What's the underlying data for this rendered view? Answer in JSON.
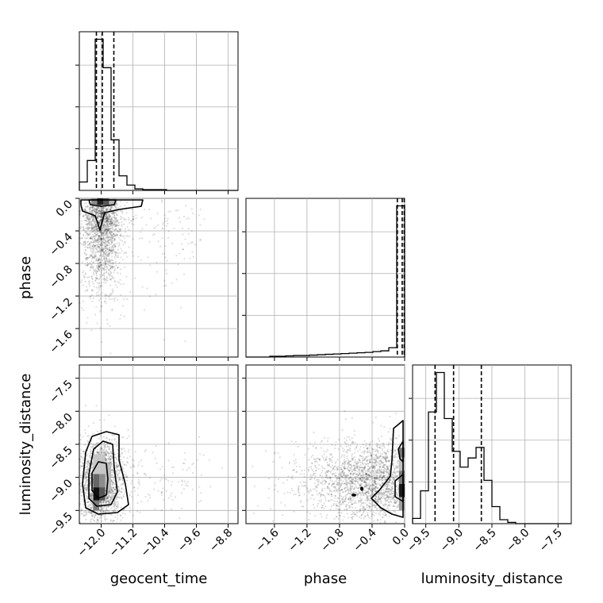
{
  "chart_data": {
    "type": "corner",
    "parameters": [
      "geocent_time",
      "phase",
      "luminosity_distance"
    ],
    "labels": {
      "geocent_time": "geocent_time",
      "phase": "phase",
      "luminosity_distance": "luminosity_distance"
    },
    "ranges": {
      "geocent_time": [
        -12.55,
        -8.55
      ],
      "phase": [
        -1.95,
        0.0
      ],
      "luminosity_distance": [
        -9.7,
        -7.3
      ]
    },
    "ticks": {
      "geocent_time": [
        -12.0,
        -11.2,
        -10.4,
        -9.6,
        -8.8
      ],
      "phase": [
        -1.6,
        -1.2,
        -0.8,
        -0.4,
        0.0
      ],
      "luminosity_distance": [
        -9.5,
        -9.0,
        -8.5,
        -8.0,
        -7.5
      ]
    },
    "tick_labels": {
      "geocent_time": [
        "−12.0",
        "−11.2",
        "−10.4",
        "−9.6",
        "−8.8"
      ],
      "phase": [
        "−1.6",
        "−1.2",
        "−0.8",
        "−0.4",
        "0.0"
      ],
      "luminosity_distance": [
        "−9.5",
        "−9.0",
        "−8.5",
        "−8.0",
        "−7.5"
      ]
    },
    "quantiles": {
      "geocent_time": [
        -12.12,
        -11.97,
        -11.68
      ],
      "phase": [
        -0.09,
        -0.03,
        -0.005
      ],
      "luminosity_distance": [
        -9.36,
        -9.08,
        -8.66
      ]
    },
    "histograms": {
      "geocent_time": {
        "edges": [
          -12.55,
          -12.35,
          -12.15,
          -11.95,
          -11.75,
          -11.55,
          -11.35,
          -11.15,
          -10.95,
          -10.75,
          -10.55,
          -10.35,
          -10.15,
          -9.95,
          -9.75,
          -9.55,
          -9.35,
          -9.15,
          -8.95,
          -8.75,
          -8.55
        ],
        "counts": [
          1.1,
          3.9,
          19.7,
          16.0,
          6.6,
          1.9,
          0.7,
          0.2,
          0.1,
          0.1,
          0.1,
          0.0,
          0.0,
          0.0,
          0.0,
          0.0,
          0.0,
          0.0,
          0.0,
          0.0
        ]
      },
      "phase": {
        "edges": [
          -1.95,
          -1.8525,
          -1.755,
          -1.6575,
          -1.56,
          -1.4625,
          -1.365,
          -1.2675,
          -1.17,
          -1.0725,
          -0.975,
          -0.8775,
          -0.78,
          -0.6825,
          -0.585,
          -0.4875,
          -0.39,
          -0.2925,
          -0.195,
          -0.0975,
          0.0
        ],
        "counts": [
          0.0,
          0.0,
          0.0,
          0.1,
          0.1,
          0.15,
          0.2,
          0.2,
          0.25,
          0.3,
          0.35,
          0.4,
          0.45,
          0.5,
          0.55,
          0.6,
          0.7,
          0.8,
          1.2,
          19.5
        ]
      },
      "luminosity_distance": {
        "edges": [
          -9.7,
          -9.58,
          -9.46,
          -9.34,
          -9.22,
          -9.1,
          -8.98,
          -8.86,
          -8.74,
          -8.62,
          -8.5,
          -8.38,
          -8.26,
          -8.14,
          -8.02,
          -7.9,
          -7.78,
          -7.66,
          -7.54,
          -7.42,
          -7.3
        ],
        "counts": [
          0.4,
          2.5,
          8.5,
          11.5,
          8.0,
          5.5,
          4.3,
          5.0,
          5.8,
          3.3,
          1.3,
          0.3,
          0.1,
          0.0,
          0.0,
          0.0,
          0.0,
          0.0,
          0.0,
          0.0
        ]
      }
    },
    "scatter": {
      "geocent_time__phase": {
        "x_center": -12.0,
        "x_spread": 0.25,
        "y_center": -0.55,
        "y_spread": 0.35
      },
      "geocent_time__luminosity_distance": {
        "x_center": -12.0,
        "x_spread": 0.28,
        "y_center": -9.05,
        "y_spread": 0.3
      },
      "phase__luminosity_distance": {
        "x_center": -0.3,
        "x_spread": 0.35,
        "y_center": -9.05,
        "y_spread": 0.3
      }
    },
    "grid": true,
    "legend": "none"
  }
}
